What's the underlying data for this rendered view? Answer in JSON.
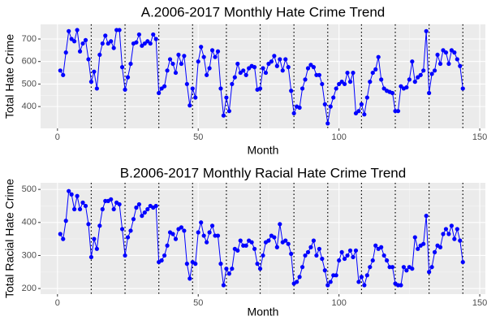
{
  "chart_data": [
    {
      "type": "line",
      "title": "A.2006-2017 Monthly Hate Crime Trend",
      "x_label": "Month",
      "y_label": "Total Hate Crime",
      "x": [
        1,
        2,
        3,
        4,
        5,
        6,
        7,
        8,
        9,
        10,
        11,
        12,
        13,
        14,
        15,
        16,
        17,
        18,
        19,
        20,
        21,
        22,
        23,
        24,
        25,
        26,
        27,
        28,
        29,
        30,
        31,
        32,
        33,
        34,
        35,
        36,
        37,
        38,
        39,
        40,
        41,
        42,
        43,
        44,
        45,
        46,
        47,
        48,
        49,
        50,
        51,
        52,
        53,
        54,
        55,
        56,
        57,
        58,
        59,
        60,
        61,
        62,
        63,
        64,
        65,
        66,
        67,
        68,
        69,
        70,
        71,
        72,
        73,
        74,
        75,
        76,
        77,
        78,
        79,
        80,
        81,
        82,
        83,
        84,
        85,
        86,
        87,
        88,
        89,
        90,
        91,
        92,
        93,
        94,
        95,
        96,
        97,
        98,
        99,
        100,
        101,
        102,
        103,
        104,
        105,
        106,
        107,
        108,
        109,
        110,
        111,
        112,
        113,
        114,
        115,
        116,
        117,
        118,
        119,
        120,
        121,
        122,
        123,
        124,
        125,
        126,
        127,
        128,
        129,
        130,
        131,
        132,
        133,
        134,
        135,
        136,
        137,
        138,
        139,
        140,
        141,
        142,
        143,
        144
      ],
      "values": [
        560,
        540,
        640,
        735,
        700,
        690,
        740,
        645,
        680,
        695,
        610,
        510,
        555,
        480,
        630,
        680,
        715,
        680,
        690,
        660,
        740,
        740,
        575,
        475,
        530,
        590,
        680,
        685,
        720,
        670,
        680,
        690,
        680,
        720,
        700,
        460,
        480,
        490,
        560,
        610,
        590,
        550,
        630,
        590,
        625,
        500,
        405,
        480,
        440,
        600,
        665,
        620,
        540,
        570,
        650,
        620,
        645,
        480,
        360,
        440,
        380,
        500,
        530,
        590,
        550,
        560,
        540,
        570,
        580,
        575,
        475,
        480,
        570,
        550,
        590,
        600,
        625,
        580,
        610,
        560,
        610,
        575,
        470,
        370,
        400,
        395,
        480,
        520,
        570,
        585,
        575,
        540,
        540,
        500,
        410,
        325,
        400,
        440,
        480,
        500,
        510,
        500,
        550,
        510,
        550,
        370,
        380,
        410,
        365,
        440,
        510,
        550,
        565,
        620,
        520,
        480,
        470,
        465,
        460,
        380,
        380,
        490,
        480,
        485,
        520,
        600,
        510,
        530,
        540,
        560,
        735,
        460,
        545,
        560,
        630,
        590,
        650,
        640,
        590,
        650,
        640,
        610,
        580,
        480
      ],
      "color": "#0000ff",
      "xlim": [
        -6,
        152
      ],
      "ylim": [
        303,
        765
      ],
      "xticks": [
        0,
        50,
        100,
        150
      ],
      "yticks": [
        400,
        500,
        600,
        700
      ],
      "vlines": [
        12,
        24,
        36,
        48,
        60,
        72,
        84,
        96,
        108,
        120,
        132,
        144
      ],
      "grid": true
    },
    {
      "type": "line",
      "title": "B.2006-2017 Monthly Racial Hate Crime Trend",
      "x_label": "Month",
      "y_label": "Total Racial Hate Crime",
      "x": [
        1,
        2,
        3,
        4,
        5,
        6,
        7,
        8,
        9,
        10,
        11,
        12,
        13,
        14,
        15,
        16,
        17,
        18,
        19,
        20,
        21,
        22,
        23,
        24,
        25,
        26,
        27,
        28,
        29,
        30,
        31,
        32,
        33,
        34,
        35,
        36,
        37,
        38,
        39,
        40,
        41,
        42,
        43,
        44,
        45,
        46,
        47,
        48,
        49,
        50,
        51,
        52,
        53,
        54,
        55,
        56,
        57,
        58,
        59,
        60,
        61,
        62,
        63,
        64,
        65,
        66,
        67,
        68,
        69,
        70,
        71,
        72,
        73,
        74,
        75,
        76,
        77,
        78,
        79,
        80,
        81,
        82,
        83,
        84,
        85,
        86,
        87,
        88,
        89,
        90,
        91,
        92,
        93,
        94,
        95,
        96,
        97,
        98,
        99,
        100,
        101,
        102,
        103,
        104,
        105,
        106,
        107,
        108,
        109,
        110,
        111,
        112,
        113,
        114,
        115,
        116,
        117,
        118,
        119,
        120,
        121,
        122,
        123,
        124,
        125,
        126,
        127,
        128,
        129,
        130,
        131,
        132,
        133,
        134,
        135,
        136,
        137,
        138,
        139,
        140,
        141,
        142,
        143,
        144
      ],
      "values": [
        365,
        350,
        405,
        495,
        485,
        440,
        480,
        440,
        460,
        450,
        395,
        295,
        350,
        320,
        390,
        440,
        465,
        465,
        470,
        440,
        460,
        455,
        380,
        300,
        355,
        375,
        410,
        445,
        455,
        420,
        430,
        440,
        450,
        445,
        450,
        280,
        285,
        300,
        330,
        370,
        365,
        350,
        380,
        385,
        375,
        275,
        230,
        280,
        275,
        370,
        400,
        360,
        340,
        370,
        390,
        360,
        360,
        275,
        210,
        260,
        245,
        260,
        320,
        315,
        345,
        330,
        330,
        345,
        340,
        320,
        275,
        260,
        300,
        340,
        345,
        360,
        355,
        325,
        395,
        340,
        345,
        335,
        305,
        215,
        220,
        235,
        265,
        300,
        310,
        325,
        345,
        300,
        320,
        290,
        255,
        210,
        220,
        240,
        240,
        285,
        310,
        290,
        300,
        315,
        295,
        315,
        220,
        235,
        210,
        240,
        265,
        285,
        330,
        320,
        325,
        300,
        285,
        265,
        265,
        215,
        210,
        210,
        265,
        255,
        265,
        260,
        355,
        320,
        330,
        335,
        420,
        250,
        265,
        310,
        330,
        325,
        365,
        380,
        365,
        390,
        350,
        380,
        345,
        280
      ],
      "color": "#0000ff",
      "xlim": [
        -6,
        152
      ],
      "ylim": [
        183,
        520
      ],
      "xticks": [
        0,
        50,
        100,
        150
      ],
      "yticks": [
        200,
        300,
        400,
        500
      ],
      "vlines": [
        12,
        24,
        36,
        48,
        60,
        72,
        84,
        96,
        108,
        120,
        132,
        144
      ],
      "grid": true
    }
  ]
}
